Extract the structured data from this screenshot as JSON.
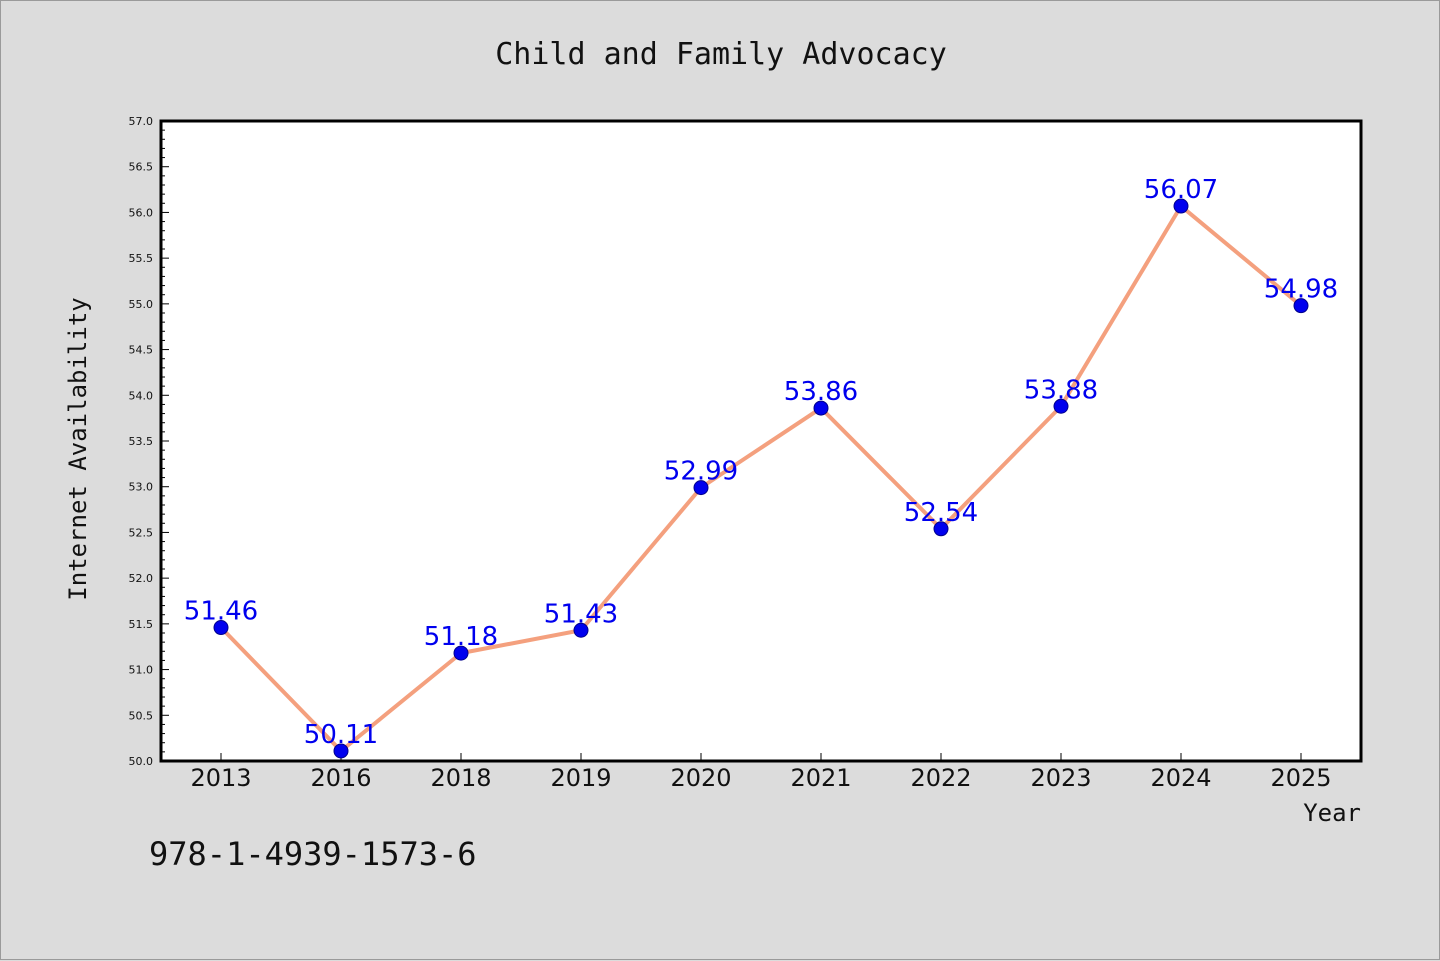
{
  "chart_data": {
    "type": "line",
    "title": "Child and Family Advocacy",
    "xlabel": "Year",
    "ylabel": "Internet Availability",
    "categories": [
      "2013",
      "2016",
      "2018",
      "2019",
      "2020",
      "2021",
      "2022",
      "2023",
      "2024",
      "2025"
    ],
    "values": [
      51.46,
      50.11,
      51.18,
      51.43,
      52.99,
      53.86,
      52.54,
      53.88,
      56.07,
      54.98
    ],
    "data_labels": [
      "51.46",
      "50.11",
      "51.18",
      "51.43",
      "52.99",
      "53.86",
      "52.54",
      "53.88",
      "56.07",
      "54.98"
    ],
    "ylim": [
      50.0,
      57.0
    ],
    "yticks": [
      "50.0",
      "50.5",
      "51.0",
      "51.5",
      "52.0",
      "52.5",
      "53.0",
      "53.5",
      "54.0",
      "54.5",
      "55.0",
      "55.5",
      "56.0",
      "56.5",
      "57.0"
    ],
    "grid": false,
    "colors": {
      "line": "#f4a07e",
      "marker": "#0000ee",
      "label": "#0000ee",
      "plot_bg": "#ffffff",
      "page_bg": "#dcdcdc"
    }
  },
  "footer": {
    "code": "978-1-4939-1573-6"
  }
}
